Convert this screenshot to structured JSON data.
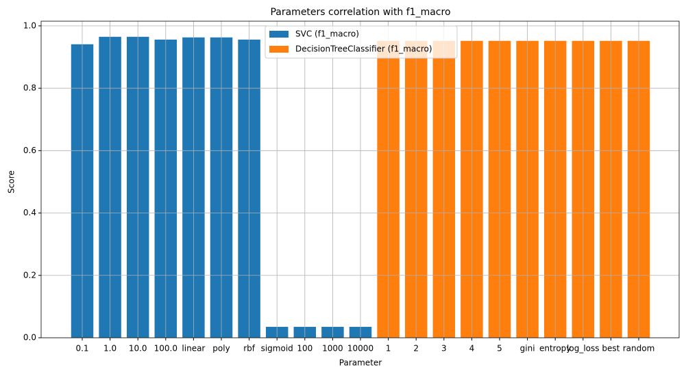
{
  "chart_data": {
    "type": "bar",
    "title": "Parameters correlation with f1_macro",
    "x_label": "Parameter",
    "y_label": "Score",
    "categories": [
      "0.1",
      "1.0",
      "10.0",
      "100.0",
      "linear",
      "poly",
      "rbf",
      "sigmoid",
      "100",
      "1000",
      "10000",
      "1",
      "2",
      "3",
      "4",
      "5",
      "gini",
      "entropy",
      "log_loss",
      "best",
      "random"
    ],
    "series": [
      {
        "name": "SVC (f1_macro)",
        "color": "#1f77b4",
        "values": [
          0.941,
          0.965,
          0.965,
          0.956,
          0.963,
          0.963,
          0.956,
          0.035,
          0.035,
          0.035,
          0.035,
          null,
          null,
          null,
          null,
          null,
          null,
          null,
          null,
          null,
          null
        ]
      },
      {
        "name": "DecisionTreeClassifier (f1_macro)",
        "color": "#ff7f0e",
        "values": [
          null,
          null,
          null,
          null,
          null,
          null,
          null,
          null,
          null,
          null,
          null,
          0.952,
          0.952,
          0.952,
          0.952,
          0.952,
          0.952,
          0.952,
          0.952,
          0.952,
          0.952
        ]
      }
    ],
    "ylim": [
      0,
      1.015
    ],
    "yticks": [
      {
        "value": 0,
        "label": "0.0"
      },
      0.2,
      0.4,
      0.6,
      0.8,
      {
        "value": 1,
        "label": "1.0"
      }
    ],
    "grid": true,
    "legend": "upper center"
  }
}
